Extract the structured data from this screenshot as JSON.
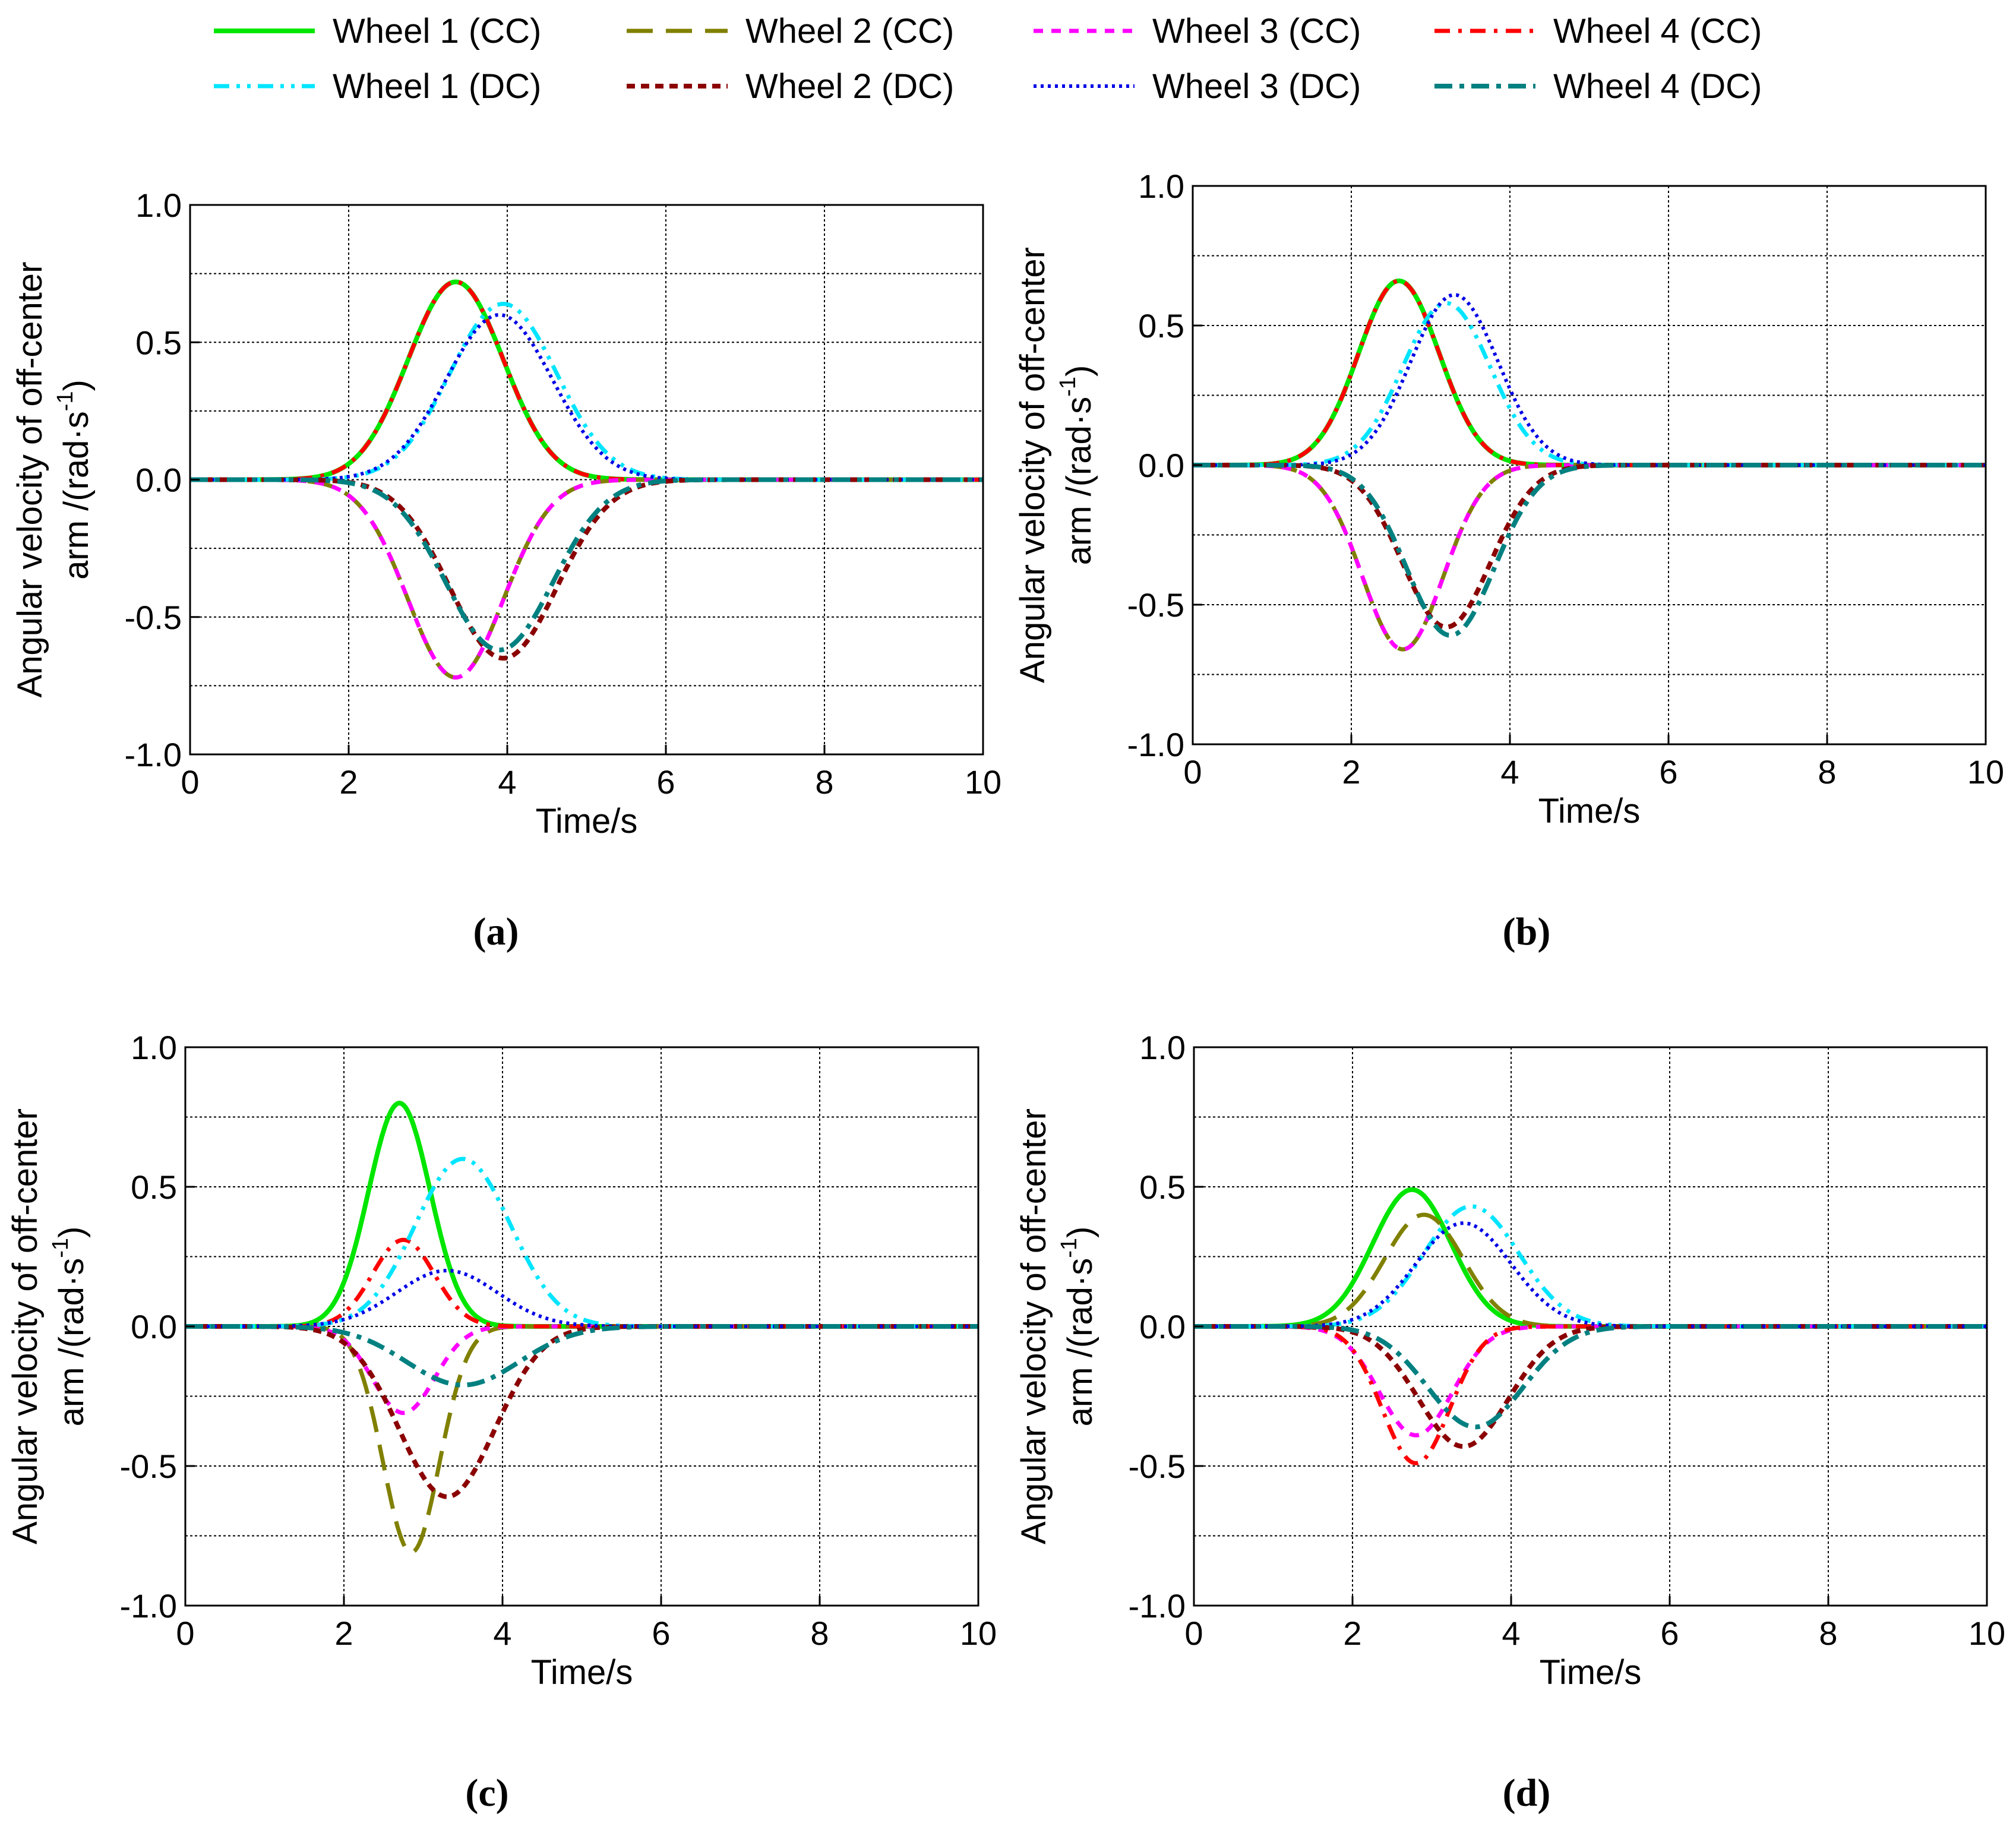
{
  "legend": {
    "entries": [
      {
        "key": "w1cc",
        "label": "Wheel 1 (CC)"
      },
      {
        "key": "w2cc",
        "label": "Wheel 2 (CC)"
      },
      {
        "key": "w3cc",
        "label": "Wheel 3 (CC)"
      },
      {
        "key": "w4cc",
        "label": "Wheel 4 (CC)"
      },
      {
        "key": "w1dc",
        "label": "Wheel 1 (DC)"
      },
      {
        "key": "w2dc",
        "label": "Wheel 2 (DC)"
      },
      {
        "key": "w3dc",
        "label": "Wheel 3 (DC)"
      },
      {
        "key": "w4dc",
        "label": "Wheel 4 (DC)"
      }
    ]
  },
  "series_styles": {
    "w1cc": {
      "color": "#00e600",
      "dash": "solid"
    },
    "w2cc": {
      "color": "#808000",
      "dash": "long-dash"
    },
    "w3cc": {
      "color": "#ff00ff",
      "dash": "short-dash"
    },
    "w4cc": {
      "color": "#ff0000",
      "dash": "dash-dot"
    },
    "w1dc": {
      "color": "#00e5ff",
      "dash": "dash-dot-dot"
    },
    "w2dc": {
      "color": "#8b0000",
      "dash": "short-dash-bold"
    },
    "w3dc": {
      "color": "#0000e6",
      "dash": "dotted"
    },
    "w4dc": {
      "color": "#008080",
      "dash": "dash-dot-bold"
    }
  },
  "chart_data": [
    {
      "id": "a",
      "type": "line",
      "caption": "(a)",
      "xlabel": "Time/s",
      "ylabel_line1": "Angular velocity of off-center",
      "ylabel_line2_prefix": "arm /(rad·s",
      "ylabel_sup": "-1",
      "ylabel_line2_suffix": ")",
      "xlim": [
        0,
        10
      ],
      "ylim": [
        -1.0,
        1.0
      ],
      "xticks": [
        "0",
        "2",
        "4",
        "6",
        "8",
        "10"
      ],
      "yticks": [
        "-1.0",
        "-0.5",
        "0.0",
        "0.5",
        "1.0"
      ],
      "grid": true,
      "series": [
        {
          "key": "w1cc",
          "peak": 0.72,
          "center": 3.35,
          "width": 0.85
        },
        {
          "key": "w4cc",
          "peak": 0.72,
          "center": 3.35,
          "width": 0.85
        },
        {
          "key": "w2cc",
          "peak": -0.72,
          "center": 3.35,
          "width": 0.85
        },
        {
          "key": "w3cc",
          "peak": -0.72,
          "center": 3.35,
          "width": 0.85
        },
        {
          "key": "w1dc",
          "peak": 0.64,
          "center": 3.95,
          "width": 0.95
        },
        {
          "key": "w3dc",
          "peak": 0.6,
          "center": 3.9,
          "width": 0.95
        },
        {
          "key": "w2dc",
          "peak": -0.65,
          "center": 3.95,
          "width": 0.95
        },
        {
          "key": "w4dc",
          "peak": -0.62,
          "center": 3.9,
          "width": 0.95
        }
      ]
    },
    {
      "id": "b",
      "type": "line",
      "caption": "(b)",
      "xlabel": "Time/s",
      "ylabel_line1": "Angular velocity of off-center",
      "ylabel_line2_prefix": "arm /(rad·s",
      "ylabel_sup": "-1",
      "ylabel_line2_suffix": ")",
      "xlim": [
        0,
        10
      ],
      "ylim": [
        -1.0,
        1.0
      ],
      "xticks": [
        "0",
        "2",
        "4",
        "6",
        "8",
        "10"
      ],
      "yticks": [
        "-1.0",
        "-0.5",
        "0.0",
        "0.5",
        "1.0"
      ],
      "grid": true,
      "series": [
        {
          "key": "w1cc",
          "peak": 0.66,
          "center": 2.6,
          "width": 0.72
        },
        {
          "key": "w4cc",
          "peak": 0.66,
          "center": 2.6,
          "width": 0.72
        },
        {
          "key": "w2cc",
          "peak": -0.66,
          "center": 2.65,
          "width": 0.72
        },
        {
          "key": "w3cc",
          "peak": -0.66,
          "center": 2.65,
          "width": 0.72
        },
        {
          "key": "w1dc",
          "peak": 0.58,
          "center": 3.2,
          "width": 0.78
        },
        {
          "key": "w3dc",
          "peak": 0.61,
          "center": 3.3,
          "width": 0.78
        },
        {
          "key": "w2dc",
          "peak": -0.58,
          "center": 3.2,
          "width": 0.78
        },
        {
          "key": "w4dc",
          "peak": -0.61,
          "center": 3.25,
          "width": 0.78
        }
      ]
    },
    {
      "id": "c",
      "type": "line",
      "caption": "(c)",
      "xlabel": "Time/s",
      "ylabel_line1": "Angular velocity of off-center",
      "ylabel_line2_prefix": "arm /(rad·s",
      "ylabel_sup": "-1",
      "ylabel_line2_suffix": ")",
      "xlim": [
        0,
        10
      ],
      "ylim": [
        -1.0,
        1.0
      ],
      "xticks": [
        "0",
        "2",
        "4",
        "6",
        "8",
        "10"
      ],
      "yticks": [
        "-1.0",
        "-0.5",
        "0.0",
        "0.5",
        "1.0"
      ],
      "grid": true,
      "series": [
        {
          "key": "w1cc",
          "peak": 0.8,
          "center": 2.7,
          "width": 0.55
        },
        {
          "key": "w2cc",
          "peak": -0.81,
          "center": 2.85,
          "width": 0.5
        },
        {
          "key": "w3cc",
          "peak": -0.31,
          "center": 2.75,
          "width": 0.55
        },
        {
          "key": "w4cc",
          "peak": 0.31,
          "center": 2.75,
          "width": 0.55
        },
        {
          "key": "w1dc",
          "peak": 0.6,
          "center": 3.5,
          "width": 0.85
        },
        {
          "key": "w2dc",
          "peak": -0.61,
          "center": 3.3,
          "width": 0.85
        },
        {
          "key": "w3dc",
          "peak": 0.2,
          "center": 3.3,
          "width": 0.9
        },
        {
          "key": "w4dc",
          "peak": -0.21,
          "center": 3.5,
          "width": 1.0
        }
      ]
    },
    {
      "id": "d",
      "type": "line",
      "caption": "(d)",
      "xlabel": "Time/s",
      "ylabel_line1": "Angular velocity of off-center",
      "ylabel_line2_prefix": "arm /(rad·s",
      "ylabel_sup": "-1",
      "ylabel_line2_suffix": ")",
      "xlim": [
        0,
        10
      ],
      "ylim": [
        -1.0,
        1.0
      ],
      "xticks": [
        "0",
        "2",
        "4",
        "6",
        "8",
        "10"
      ],
      "yticks": [
        "-1.0",
        "-0.5",
        "0.0",
        "0.5",
        "1.0"
      ],
      "grid": true,
      "series": [
        {
          "key": "w1cc",
          "peak": 0.49,
          "center": 2.75,
          "width": 0.7
        },
        {
          "key": "w2cc",
          "peak": 0.4,
          "center": 2.9,
          "width": 0.7
        },
        {
          "key": "w3cc",
          "peak": -0.39,
          "center": 2.8,
          "width": 0.65
        },
        {
          "key": "w4cc",
          "peak": -0.49,
          "center": 2.8,
          "width": 0.6
        },
        {
          "key": "w1dc",
          "peak": 0.43,
          "center": 3.5,
          "width": 0.85
        },
        {
          "key": "w2dc",
          "peak": -0.43,
          "center": 3.4,
          "width": 0.8
        },
        {
          "key": "w3dc",
          "peak": 0.37,
          "center": 3.4,
          "width": 0.85
        },
        {
          "key": "w4dc",
          "peak": -0.36,
          "center": 3.55,
          "width": 0.85
        }
      ]
    }
  ]
}
